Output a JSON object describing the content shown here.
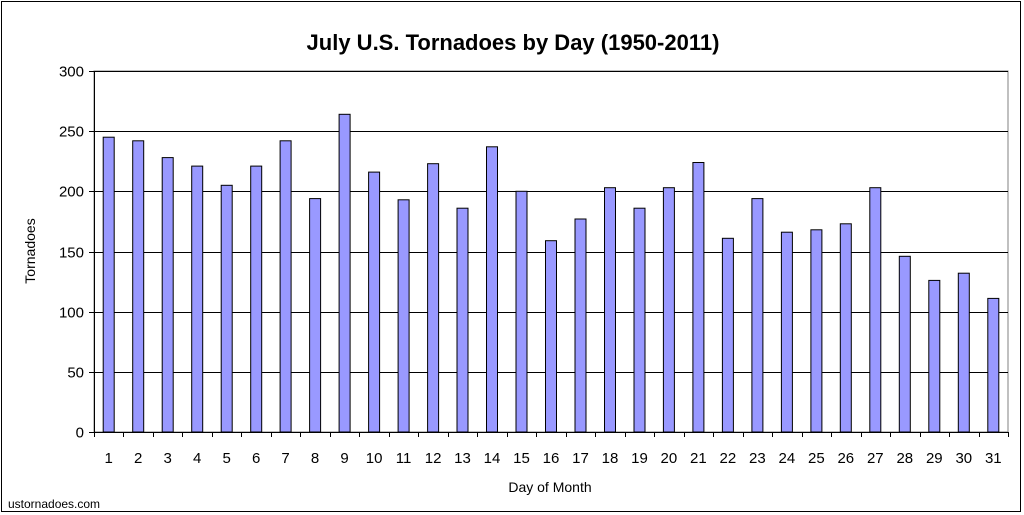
{
  "chart_data": {
    "type": "bar",
    "title": "July U.S. Tornadoes by Day (1950-2011)",
    "xlabel": "Day of Month",
    "ylabel": "Tornadoes",
    "ylim": [
      0,
      300
    ],
    "yticks": [
      0,
      50,
      100,
      150,
      200,
      250,
      300
    ],
    "grid": true,
    "legend": "none",
    "categories": [
      "1",
      "2",
      "3",
      "4",
      "5",
      "6",
      "7",
      "8",
      "9",
      "10",
      "11",
      "12",
      "13",
      "14",
      "15",
      "16",
      "17",
      "18",
      "19",
      "20",
      "21",
      "22",
      "23",
      "24",
      "25",
      "26",
      "27",
      "28",
      "29",
      "30",
      "31"
    ],
    "values": [
      245,
      242,
      228,
      221,
      205,
      221,
      242,
      194,
      264,
      216,
      193,
      223,
      186,
      237,
      200,
      159,
      177,
      203,
      186,
      203,
      224,
      161,
      194,
      166,
      168,
      173,
      203,
      146,
      126,
      132,
      111
    ],
    "bar_color": "#9999ff",
    "bar_stroke": "#000000",
    "credit": "ustornadoes.com"
  }
}
